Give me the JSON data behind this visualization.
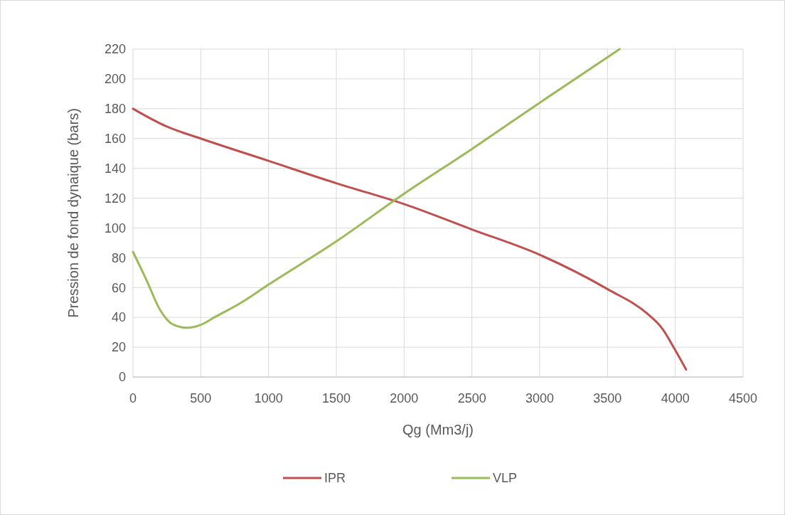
{
  "chart_data": {
    "type": "line",
    "xlabel": "Qg (Mm3/j)",
    "ylabel": "Pression de fond dynaique (bars)",
    "xlim": [
      0,
      4500
    ],
    "xticks": [
      0,
      500,
      1000,
      1500,
      2000,
      2500,
      3000,
      3500,
      4000,
      4500
    ],
    "ylim": [
      0,
      220
    ],
    "yticks": [
      0,
      20,
      40,
      60,
      80,
      100,
      120,
      140,
      160,
      180,
      200,
      220
    ],
    "grid": true,
    "legend": "bottom",
    "marker": "none",
    "line_style": "solid",
    "series": [
      {
        "name": "IPR",
        "color": "#c0504d",
        "x": [
          0,
          250,
          500,
          1000,
          1500,
          2000,
          2500,
          3000,
          3500,
          3800,
          3900,
          4000,
          4080
        ],
        "values": [
          180,
          168,
          160,
          145,
          130,
          116,
          99,
          82,
          59,
          42,
          33,
          18,
          5
        ]
      },
      {
        "name": "VLP",
        "color": "#9bbb59",
        "x": [
          0,
          100,
          200,
          300,
          400,
          500,
          600,
          800,
          1000,
          1500,
          2000,
          2500,
          3000,
          3590
        ],
        "values": [
          84,
          65,
          45,
          35,
          33,
          35,
          40,
          50,
          62,
          91,
          123,
          153,
          184,
          220
        ]
      }
    ]
  }
}
